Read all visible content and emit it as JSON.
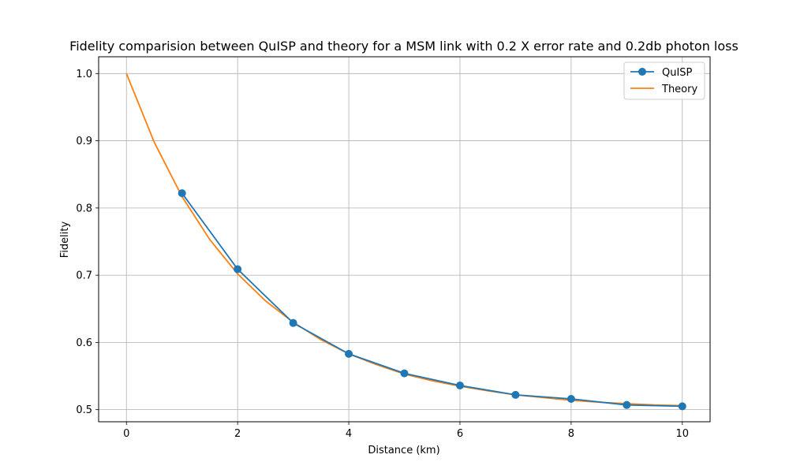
{
  "chart_data": {
    "type": "line",
    "title": "Fidelity comparision between QuISP and theory for a MSM link with 0.2 X error rate and 0.2db photon loss",
    "xlabel": "Distance (km)",
    "ylabel": "Fidelity",
    "xlim": [
      -0.5,
      10.5
    ],
    "ylim": [
      0.482,
      1.025
    ],
    "xticks": [
      0,
      2,
      4,
      6,
      8,
      10
    ],
    "yticks": [
      0.5,
      0.6,
      0.7,
      0.8,
      0.9,
      1.0
    ],
    "xtick_labels": [
      "0",
      "2",
      "4",
      "6",
      "8",
      "10"
    ],
    "ytick_labels": [
      "0.5",
      "0.6",
      "0.7",
      "0.8",
      "0.9",
      "1.0"
    ],
    "grid": true,
    "legend_position": "top-right",
    "series": [
      {
        "name": "QuISP",
        "style": "line-with-markers",
        "color": "#1f77b4",
        "x": [
          1,
          2,
          3,
          4,
          5,
          6,
          7,
          8,
          9,
          10
        ],
        "y": [
          0.822,
          0.709,
          0.629,
          0.583,
          0.554,
          0.536,
          0.522,
          0.516,
          0.507,
          0.505
        ]
      },
      {
        "name": "Theory",
        "style": "line",
        "color": "#ff7f0e",
        "x": [
          0,
          0.5,
          1,
          1.5,
          2,
          2.5,
          3,
          3.5,
          4,
          4.5,
          5,
          5.5,
          6,
          6.5,
          7,
          7.5,
          8,
          8.5,
          9,
          9.5,
          10
        ],
        "y": [
          1.0,
          0.898,
          0.817,
          0.753,
          0.702,
          0.662,
          0.63,
          0.604,
          0.583,
          0.567,
          0.553,
          0.543,
          0.535,
          0.528,
          0.522,
          0.518,
          0.514,
          0.511,
          0.509,
          0.507,
          0.506
        ]
      }
    ]
  }
}
